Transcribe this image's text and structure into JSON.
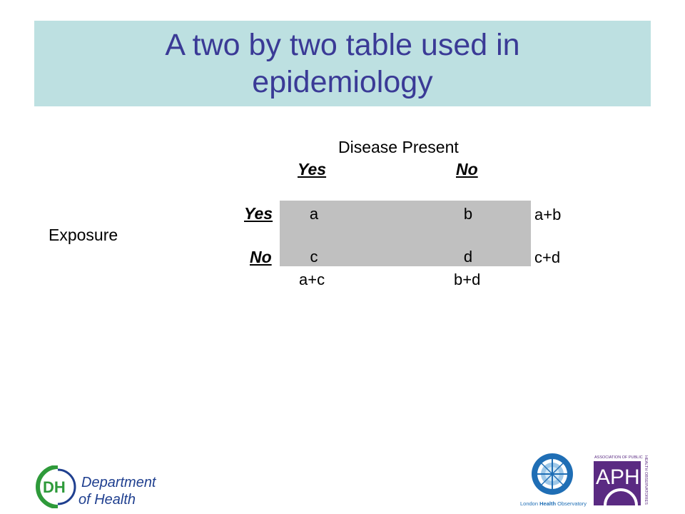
{
  "slide": {
    "title": "A two by two table used in epidemiology"
  },
  "table": {
    "disease_header": "Disease Present",
    "col_yes": "Yes",
    "col_no": "No",
    "row_yes": "Yes",
    "row_no": "No",
    "row_header": "Exposure",
    "cell_a": "a",
    "cell_b": "b",
    "cell_c": "c",
    "cell_d": "d",
    "row_total_1": "a+b",
    "row_total_2": "c+d",
    "col_total_1": "a+c",
    "col_total_2": "b+d"
  },
  "logos": {
    "dh_mark": "DH",
    "dh_line1": "Department",
    "dh_line2": "of Health",
    "lho_text_1": "London ",
    "lho_text_2": "Health",
    "lho_text_3": " Observatory",
    "aph_top": "ASSOCIATION OF PUBLIC",
    "aph_side": "HEALTH OBSERVATORIES",
    "aph_letters": "APH"
  },
  "colors": {
    "title_bg": "#bde0e1",
    "title_text": "#3a3a96",
    "cell_bg": "#c0c0c0",
    "dh_green": "#2e9a3a",
    "dh_blue": "#1f3f8f",
    "lho_blue": "#1f6eb5",
    "aph_purple": "#5a2a82"
  }
}
